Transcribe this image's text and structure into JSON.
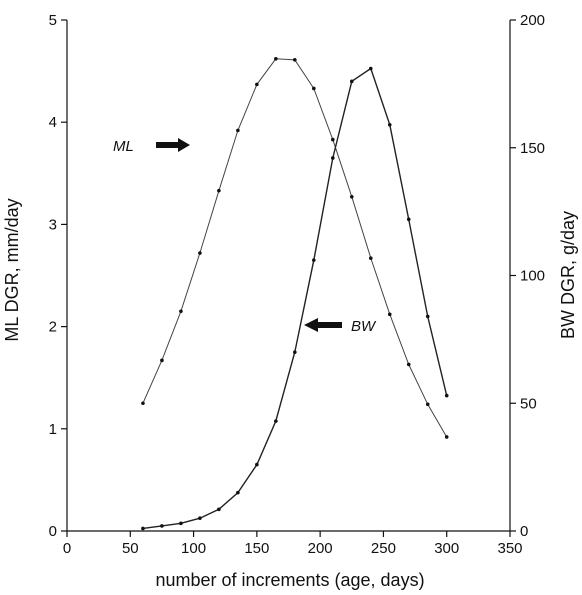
{
  "chart_data": {
    "type": "line",
    "xlabel": "number of increments (age, days)",
    "ylabel_left": "ML DGR, mm/day",
    "ylabel_right": "BW DGR, g/day",
    "xlim": [
      0,
      350
    ],
    "ylim_left": [
      0,
      5
    ],
    "ylim_right": [
      0,
      200
    ],
    "x_ticks": [
      "0",
      "50",
      "100",
      "150",
      "200",
      "250",
      "300",
      "350"
    ],
    "y_left_ticks": [
      "0",
      "1",
      "2",
      "3",
      "4",
      "5"
    ],
    "y_right_ticks": [
      "0",
      "50",
      "100",
      "150",
      "200"
    ],
    "grid": false,
    "series": [
      {
        "name": "ML",
        "axis": "left",
        "x": [
          60,
          75,
          90,
          105,
          120,
          135,
          150,
          165,
          180,
          195,
          210,
          225,
          240,
          255,
          270,
          285,
          300
        ],
        "y": [
          1.25,
          1.67,
          2.15,
          2.72,
          3.33,
          3.92,
          4.37,
          4.62,
          4.61,
          4.33,
          3.83,
          3.27,
          2.67,
          2.12,
          1.63,
          1.24,
          0.92
        ]
      },
      {
        "name": "BW",
        "axis": "right",
        "x": [
          60,
          75,
          90,
          105,
          120,
          135,
          150,
          165,
          180,
          195,
          210,
          225,
          240,
          255,
          270,
          285,
          300
        ],
        "y": [
          1,
          2,
          3,
          5,
          8.5,
          15,
          26,
          43,
          70,
          106,
          146,
          176,
          181,
          159,
          122,
          84,
          53
        ]
      }
    ],
    "annotations": [
      "ML",
      "BW"
    ]
  }
}
